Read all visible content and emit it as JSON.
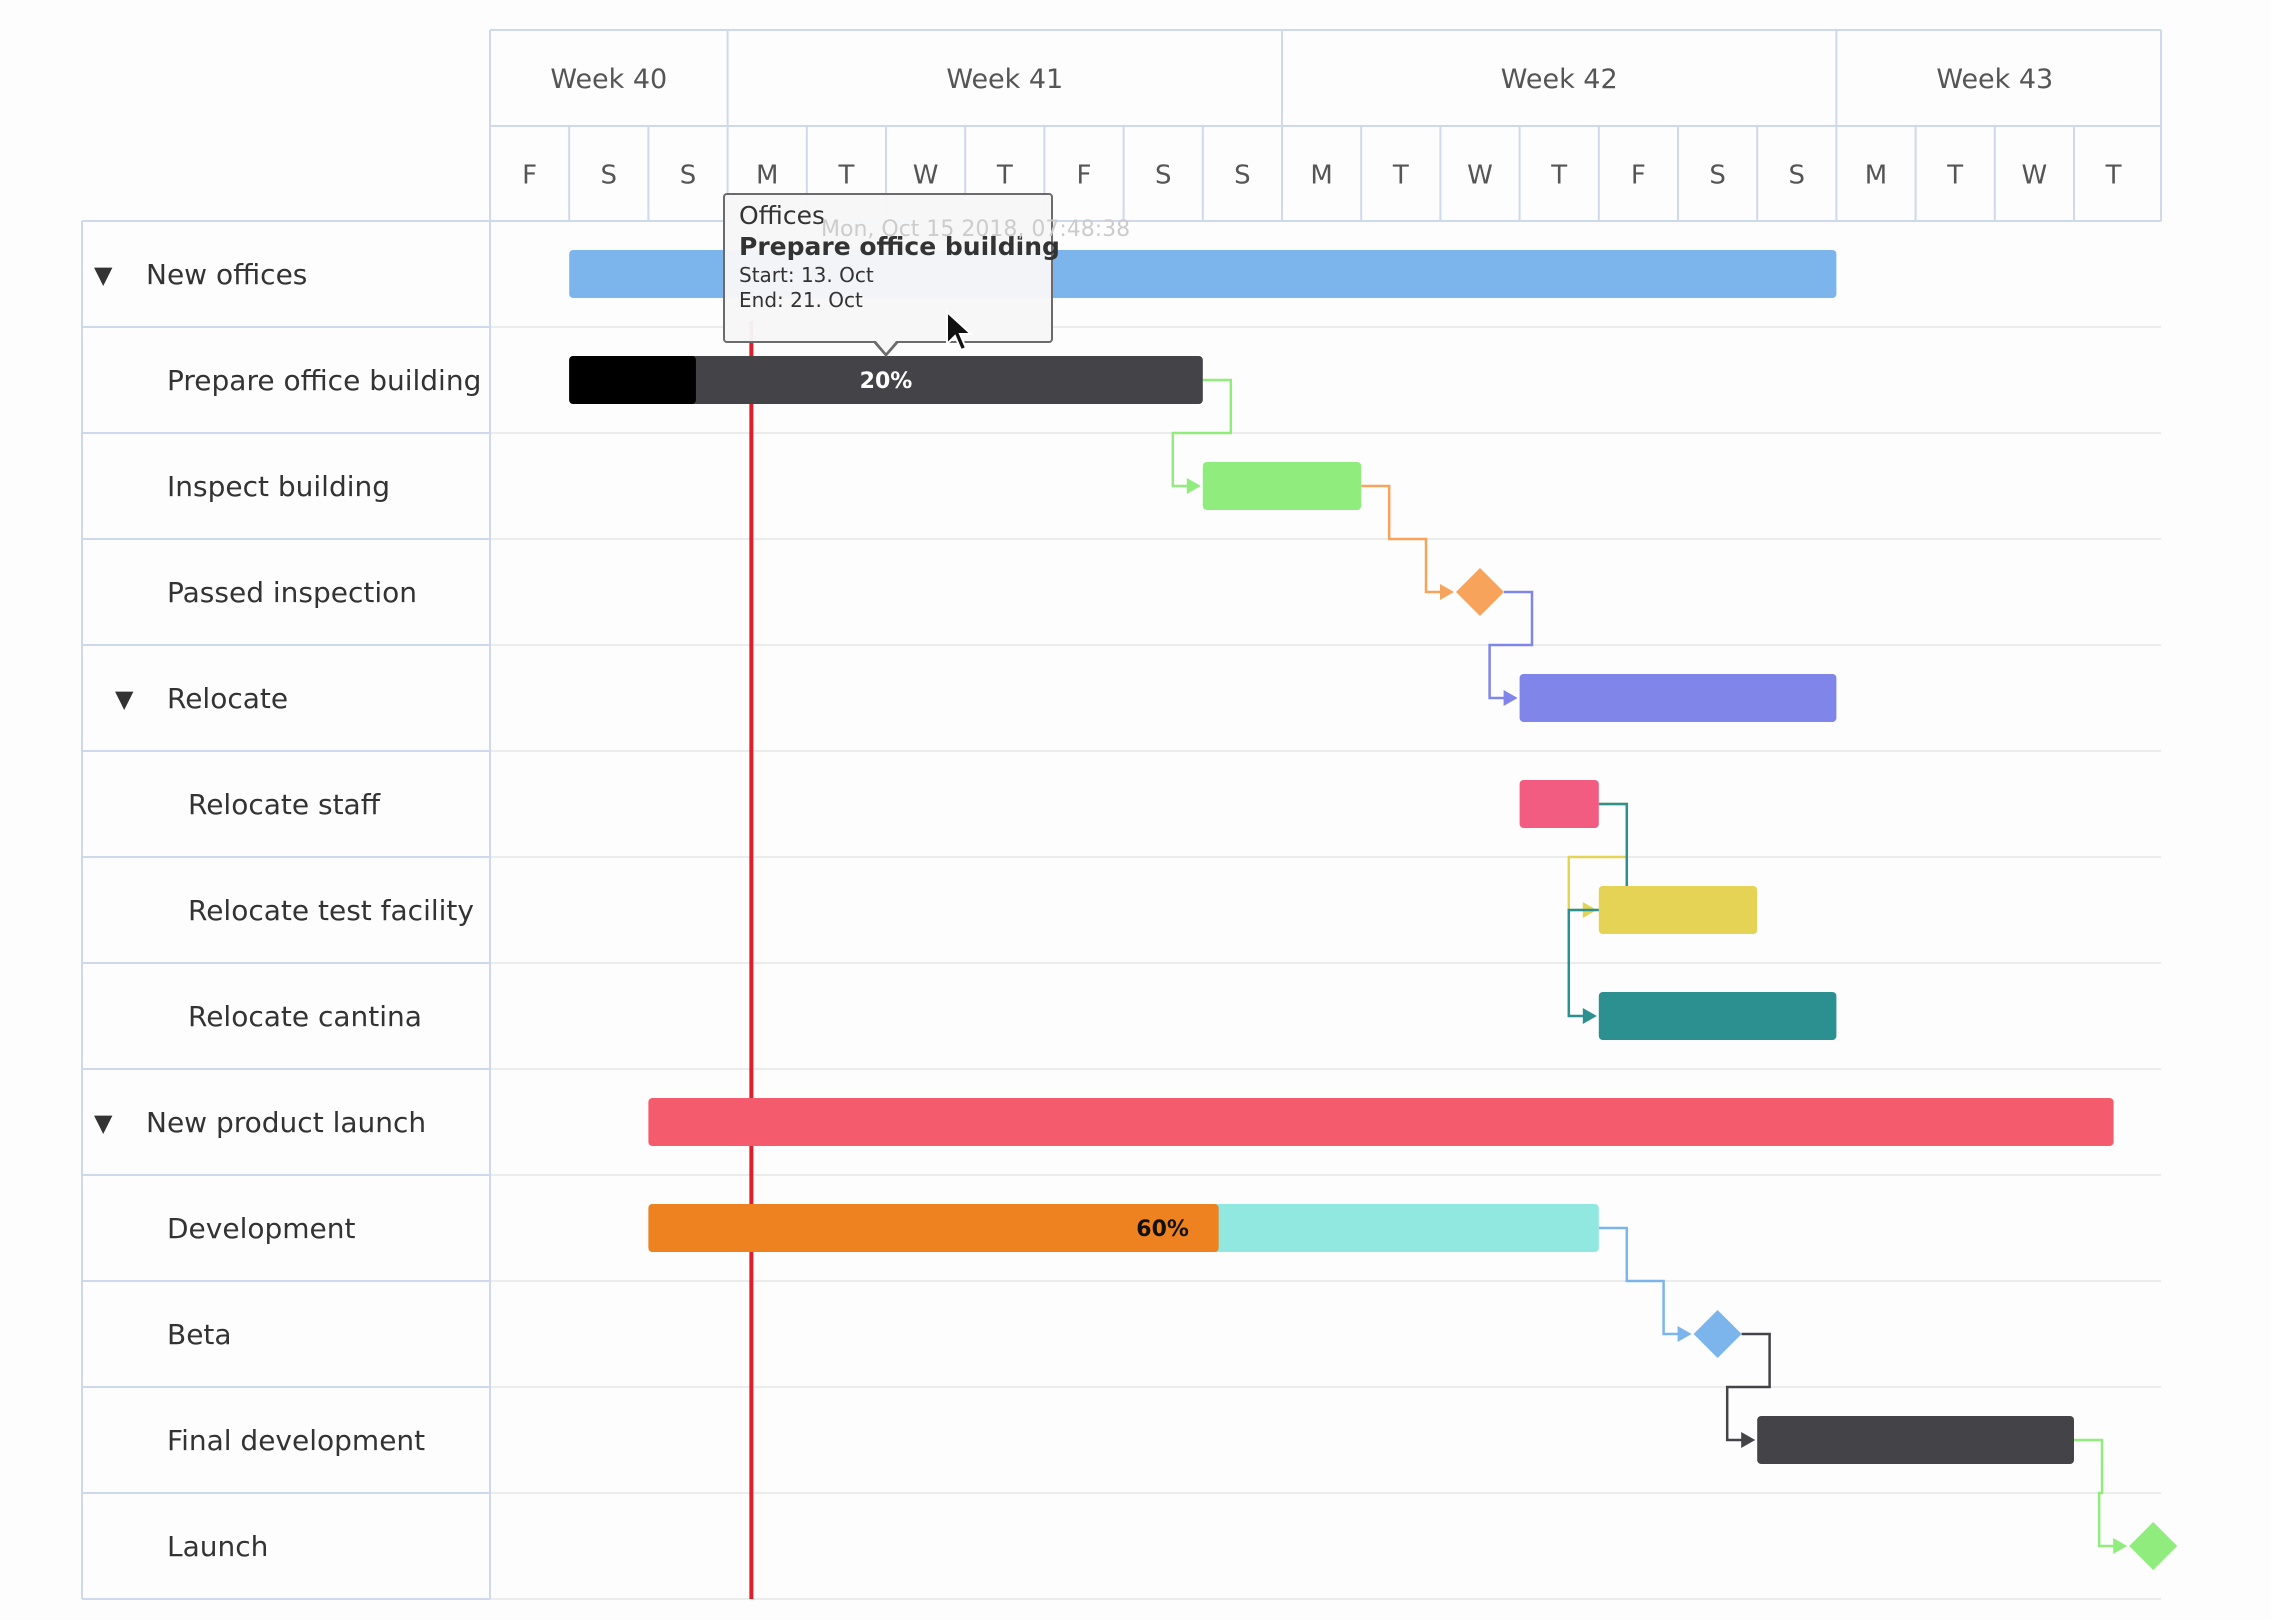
{
  "chart_data": {
    "type": "gantt",
    "weeks": [
      {
        "label": "Week 40",
        "start_day": 0,
        "days": 3
      },
      {
        "label": "Week 41",
        "start_day": 3,
        "days": 7
      },
      {
        "label": "Week 42",
        "start_day": 10,
        "days": 7
      },
      {
        "label": "Week 43",
        "start_day": 17,
        "days": 4
      }
    ],
    "day_labels": [
      "F",
      "S",
      "S",
      "M",
      "T",
      "W",
      "T",
      "F",
      "S",
      "S",
      "M",
      "T",
      "W",
      "T",
      "F",
      "S",
      "S",
      "M",
      "T",
      "W",
      "T"
    ],
    "today_marker": {
      "day": 3.3,
      "color": "#e01e2a"
    },
    "rows": [
      {
        "id": "new-offices",
        "label": "New offices",
        "level": 0,
        "collapsible": true,
        "kind": "bar",
        "start": 1,
        "end": 17,
        "color": "#7cb5ec"
      },
      {
        "id": "prepare-office-building",
        "label": "Prepare office building",
        "level": 1,
        "kind": "bar",
        "start": 1,
        "end": 9,
        "color": "#434348",
        "completed": 0.2,
        "completed_color": "#000000",
        "completed_label": "20%"
      },
      {
        "id": "inspect-building",
        "label": "Inspect building",
        "level": 1,
        "kind": "bar",
        "start": 9,
        "end": 11,
        "color": "#90ed7d"
      },
      {
        "id": "passed-inspection",
        "label": "Passed inspection",
        "level": 1,
        "kind": "milestone",
        "start": 12,
        "color": "#f7a35c"
      },
      {
        "id": "relocate",
        "label": "Relocate",
        "level": 1,
        "collapsible": true,
        "kind": "bar",
        "start": 13,
        "end": 17,
        "color": "#8085e9"
      },
      {
        "id": "relocate-staff",
        "label": "Relocate staff",
        "level": 2,
        "kind": "bar",
        "start": 13,
        "end": 14,
        "color": "#f15c80"
      },
      {
        "id": "relocate-test-facility",
        "label": "Relocate test facility",
        "level": 2,
        "kind": "bar",
        "start": 14,
        "end": 16,
        "color": "#e4d354"
      },
      {
        "id": "relocate-cantina",
        "label": "Relocate cantina",
        "level": 2,
        "kind": "bar",
        "start": 14,
        "end": 17,
        "color": "#2b908f"
      },
      {
        "id": "new-product-launch",
        "label": "New product launch",
        "level": 0,
        "collapsible": true,
        "kind": "bar",
        "start": 2,
        "end": 20.5,
        "color": "#f45b6c"
      },
      {
        "id": "development",
        "label": "Development",
        "level": 1,
        "kind": "bar",
        "start": 2,
        "end": 14,
        "color": "#91e8e1",
        "completed": 0.6,
        "completed_color": "#ef8220",
        "completed_label": "60%"
      },
      {
        "id": "beta",
        "label": "Beta",
        "level": 1,
        "kind": "milestone",
        "start": 15,
        "color": "#7cb5ec"
      },
      {
        "id": "final-development",
        "label": "Final development",
        "level": 1,
        "kind": "bar",
        "start": 16,
        "end": 20,
        "color": "#434348"
      },
      {
        "id": "launch",
        "label": "Launch",
        "level": 1,
        "kind": "milestone",
        "start": 20.5,
        "color": "#90ed7d"
      }
    ],
    "dependencies": [
      {
        "from": "prepare-office-building",
        "to": "inspect-building",
        "color": "#90ed7d"
      },
      {
        "from": "inspect-building",
        "to": "passed-inspection",
        "color": "#f7a35c"
      },
      {
        "from": "passed-inspection",
        "to": "relocate",
        "color": "#8085e9"
      },
      {
        "from": "relocate-staff",
        "to": "relocate-test-facility",
        "color": "#e4d354"
      },
      {
        "from": "relocate-staff",
        "to": "relocate-cantina",
        "color": "#2b908f"
      },
      {
        "from": "development",
        "to": "beta",
        "color": "#7cb5ec"
      },
      {
        "from": "beta",
        "to": "final-development",
        "color": "#434348"
      },
      {
        "from": "final-development",
        "to": "launch",
        "color": "#90ed7d"
      }
    ]
  },
  "tooltip": {
    "header": "Offices",
    "time": "Mon, Oct 15 2018, 07:48:38",
    "name": "Prepare office building",
    "start": "Start: 13. Oct",
    "end": "End: 21. Oct"
  },
  "expand_icon": "▼"
}
